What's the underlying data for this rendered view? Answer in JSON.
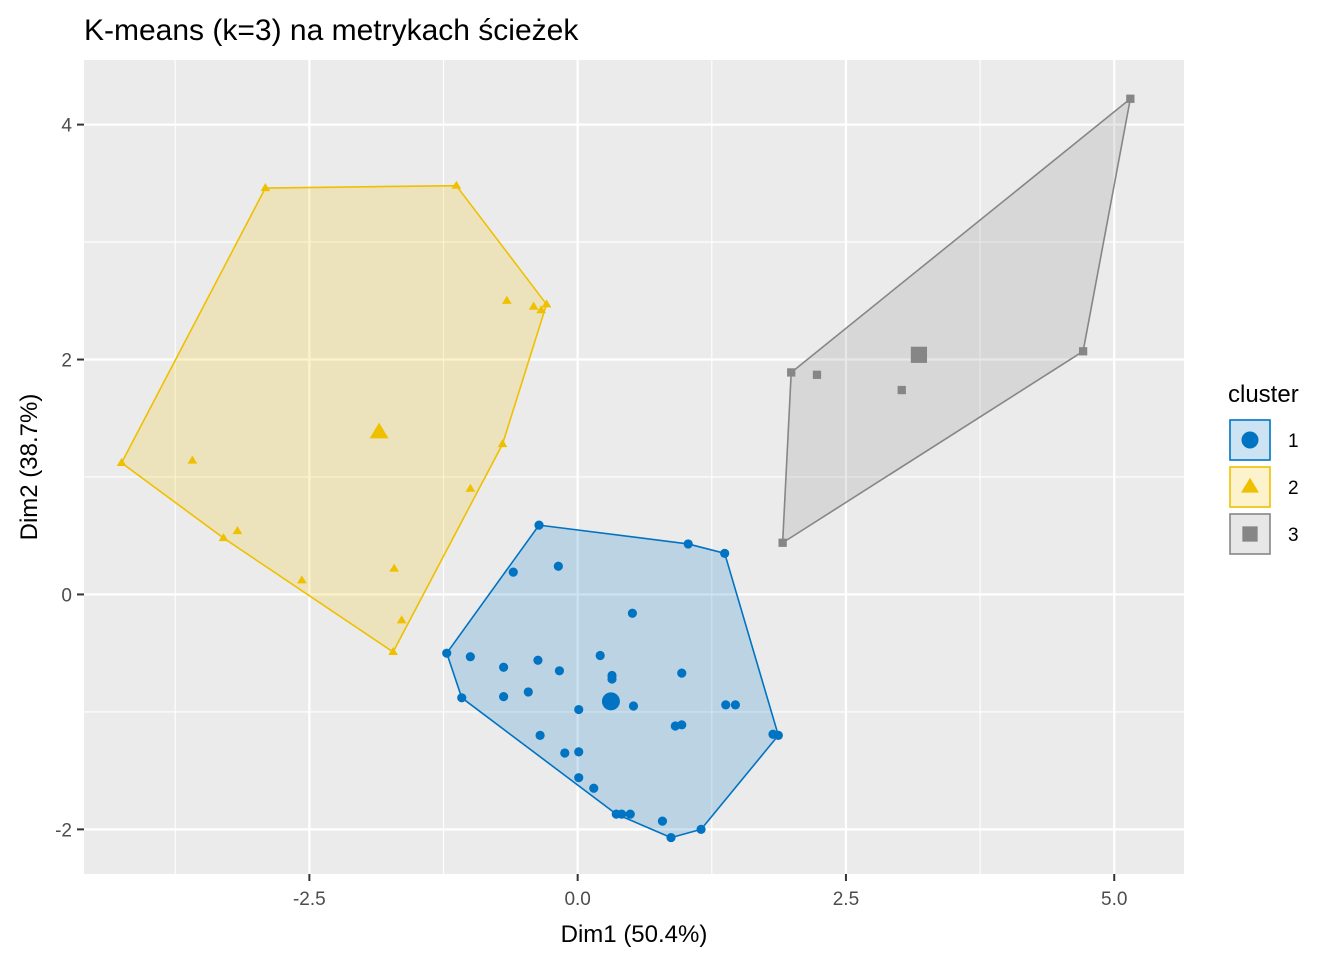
{
  "chart_data": {
    "type": "scatter",
    "title": "K-means (k=3) na metrykach ścieżek",
    "xlabel": "Dim1 (50.4%)",
    "ylabel": "Dim2 (38.7%)",
    "xlim": [
      -4.6,
      5.65
    ],
    "ylim": [
      -2.38,
      4.55
    ],
    "x_ticks": [
      -2.5,
      0.0,
      2.5,
      5.0
    ],
    "x_tick_labels": [
      "-2.5",
      "0.0",
      "2.5",
      "5.0"
    ],
    "y_ticks": [
      -2,
      0,
      2,
      4
    ],
    "y_tick_labels": [
      "-2",
      "0",
      "2",
      "4"
    ],
    "grid": true,
    "legend": {
      "title": "cluster",
      "position": "right"
    },
    "series": [
      {
        "name": "1",
        "color": "#0073C2",
        "shape": "circle",
        "centroid": [
          0.31,
          -0.91
        ],
        "points": [
          [
            -0.36,
            0.59
          ],
          [
            1.03,
            0.43
          ],
          [
            1.37,
            0.35
          ],
          [
            -0.18,
            0.24
          ],
          [
            -0.6,
            0.19
          ],
          [
            0.51,
            -0.16
          ],
          [
            -1.22,
            -0.5
          ],
          [
            -1.0,
            -0.53
          ],
          [
            0.21,
            -0.52
          ],
          [
            -0.37,
            -0.56
          ],
          [
            -0.69,
            -0.62
          ],
          [
            -0.17,
            -0.65
          ],
          [
            0.97,
            -0.67
          ],
          [
            0.32,
            -0.69
          ],
          [
            0.32,
            -0.72
          ],
          [
            -0.46,
            -0.83
          ],
          [
            -0.69,
            -0.87
          ],
          [
            -1.08,
            -0.88
          ],
          [
            1.38,
            -0.94
          ],
          [
            1.47,
            -0.94
          ],
          [
            0.52,
            -0.95
          ],
          [
            0.01,
            -0.98
          ],
          [
            0.91,
            -1.12
          ],
          [
            0.97,
            -1.11
          ],
          [
            1.82,
            -1.19
          ],
          [
            1.87,
            -1.2
          ],
          [
            -0.35,
            -1.2
          ],
          [
            -0.12,
            -1.35
          ],
          [
            0.01,
            -1.34
          ],
          [
            0.01,
            -1.56
          ],
          [
            0.15,
            -1.65
          ],
          [
            0.36,
            -1.87
          ],
          [
            0.41,
            -1.87
          ],
          [
            0.49,
            -1.87
          ],
          [
            0.79,
            -1.93
          ],
          [
            1.15,
            -2.0
          ],
          [
            0.87,
            -2.07
          ]
        ],
        "hull": [
          [
            -0.36,
            0.59
          ],
          [
            1.03,
            0.43
          ],
          [
            1.37,
            0.35
          ],
          [
            1.87,
            -1.2
          ],
          [
            1.15,
            -2.0
          ],
          [
            0.87,
            -2.07
          ],
          [
            0.36,
            -1.87
          ],
          [
            -1.08,
            -0.88
          ],
          [
            -1.22,
            -0.5
          ]
        ]
      },
      {
        "name": "2",
        "color": "#EFC000",
        "shape": "triangle",
        "centroid": [
          -1.85,
          1.38
        ],
        "points": [
          [
            -2.91,
            3.46
          ],
          [
            -1.13,
            3.48
          ],
          [
            -0.66,
            2.5
          ],
          [
            -0.41,
            2.45
          ],
          [
            -0.29,
            2.47
          ],
          [
            -0.34,
            2.42
          ],
          [
            -4.25,
            1.12
          ],
          [
            -3.59,
            1.14
          ],
          [
            -0.7,
            1.28
          ],
          [
            -1.0,
            0.9
          ],
          [
            -3.3,
            0.48
          ],
          [
            -3.17,
            0.54
          ],
          [
            -2.57,
            0.12
          ],
          [
            -1.71,
            0.22
          ],
          [
            -1.64,
            -0.22
          ],
          [
            -1.72,
            -0.49
          ]
        ],
        "hull": [
          [
            -2.91,
            3.46
          ],
          [
            -1.13,
            3.48
          ],
          [
            -0.29,
            2.47
          ],
          [
            -0.7,
            1.28
          ],
          [
            -1.72,
            -0.49
          ],
          [
            -3.3,
            0.48
          ],
          [
            -4.25,
            1.12
          ]
        ]
      },
      {
        "name": "3",
        "color": "#868686",
        "shape": "square",
        "centroid": [
          3.18,
          2.04
        ],
        "points": [
          [
            5.15,
            4.22
          ],
          [
            1.99,
            1.89
          ],
          [
            2.23,
            1.87
          ],
          [
            4.71,
            2.07
          ],
          [
            3.02,
            1.74
          ],
          [
            1.91,
            0.44
          ]
        ],
        "hull": [
          [
            5.15,
            4.22
          ],
          [
            4.71,
            2.07
          ],
          [
            1.91,
            0.44
          ],
          [
            1.99,
            1.89
          ]
        ]
      }
    ]
  }
}
